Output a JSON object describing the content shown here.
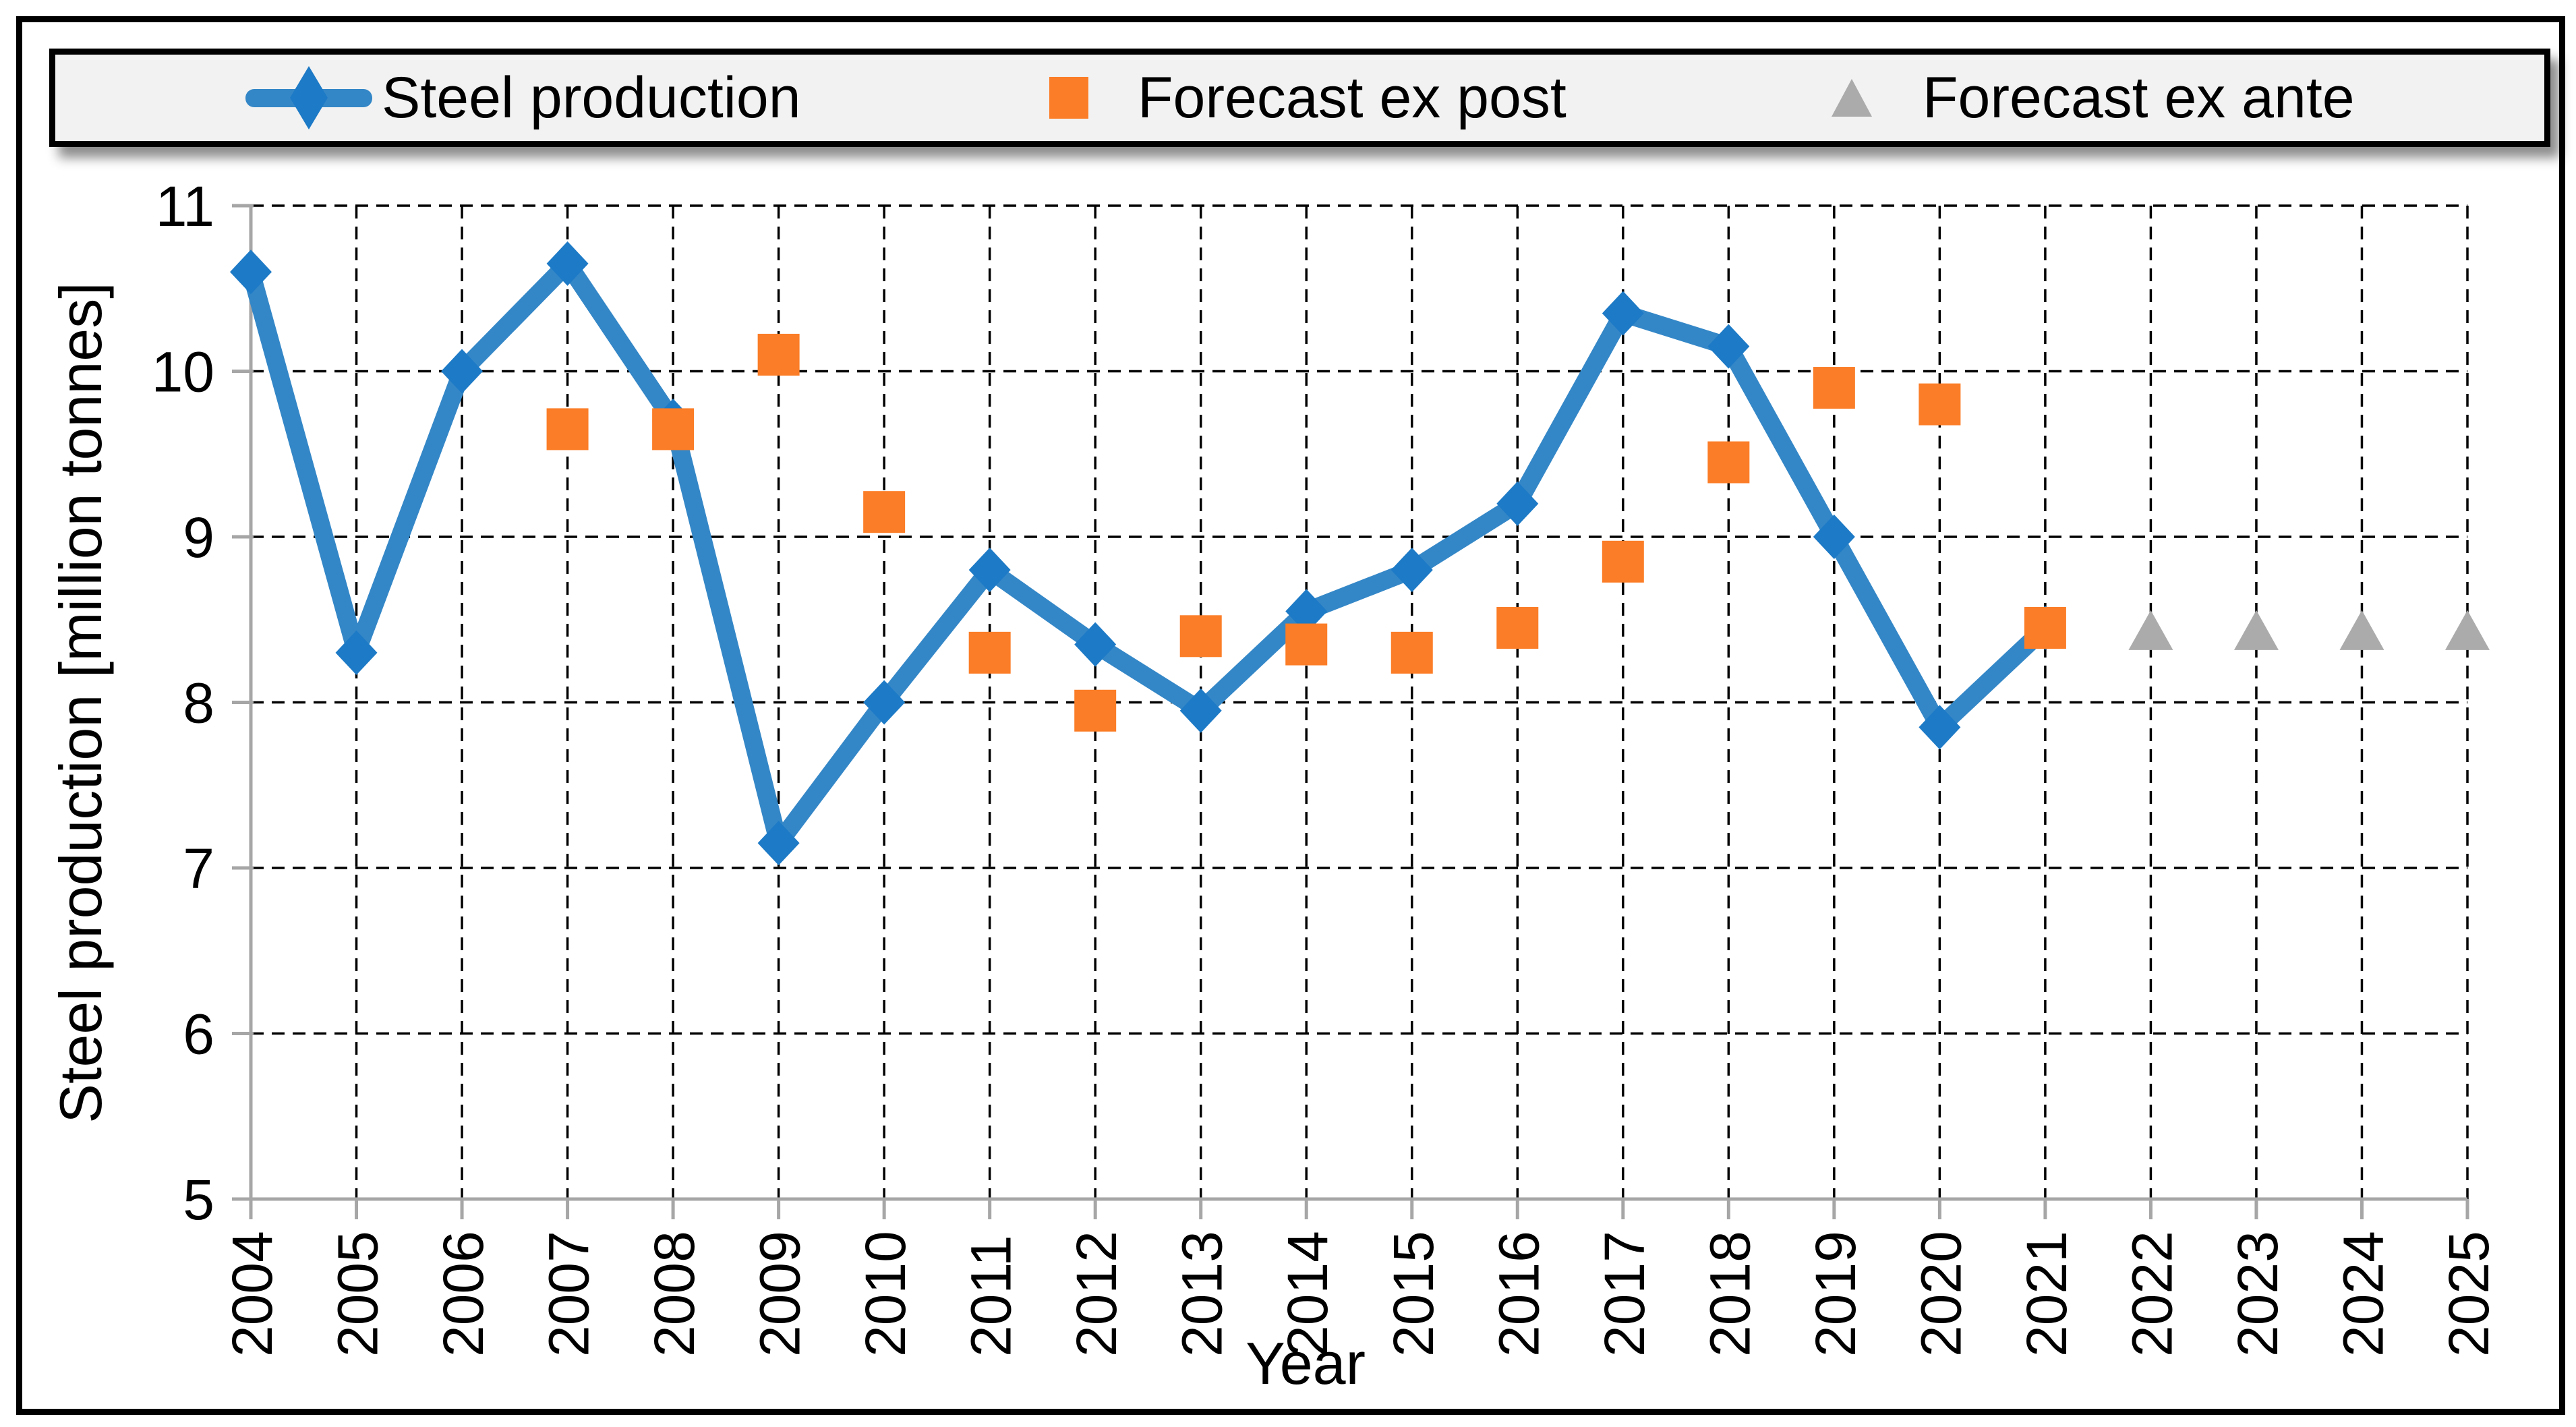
{
  "legend": {
    "items": [
      {
        "label": "Steel production",
        "marker": "line-diamond",
        "line_color": "#3487C7",
        "marker_color": "#1D7AC6"
      },
      {
        "label": "Forecast ex post",
        "marker": "square",
        "marker_color": "#FB7D27"
      },
      {
        "label": "Forecast ex ante",
        "marker": "triangle",
        "marker_color": "#ABABAB"
      }
    ]
  },
  "chart_data": {
    "type": "line",
    "title": "",
    "xlabel": "Year",
    "ylabel": "Steel production [million tonnes]",
    "x_categories": [
      2004,
      2005,
      2006,
      2007,
      2008,
      2009,
      2010,
      2011,
      2012,
      2013,
      2014,
      2015,
      2016,
      2017,
      2018,
      2019,
      2020,
      2021,
      2022,
      2023,
      2024,
      2025
    ],
    "yticks": [
      5,
      6,
      7,
      8,
      9,
      10,
      11
    ],
    "ylim": [
      5,
      11
    ],
    "grid": "dashed black, both axes",
    "legend_position": "top",
    "axis_color": "#A6A6A6",
    "series": [
      {
        "name": "Steel production",
        "render": "line-with-diamond-markers",
        "line_color": "#3487C7",
        "marker_color": "#1D7AC6",
        "x": [
          2004,
          2005,
          2006,
          2007,
          2008,
          2009,
          2010,
          2011,
          2012,
          2013,
          2014,
          2015,
          2016,
          2017,
          2018,
          2019,
          2020,
          2021
        ],
        "y": [
          10.6,
          8.3,
          10.0,
          10.65,
          9.7,
          7.15,
          8.0,
          8.8,
          8.35,
          7.95,
          8.55,
          8.8,
          9.2,
          10.35,
          10.15,
          9.0,
          7.85,
          8.45
        ]
      },
      {
        "name": "Forecast ex post",
        "render": "scatter-square-markers",
        "marker_color": "#FB7D27",
        "x": [
          2007,
          2008,
          2009,
          2010,
          2011,
          2012,
          2013,
          2014,
          2015,
          2016,
          2017,
          2018,
          2019,
          2020,
          2021
        ],
        "y": [
          9.65,
          9.65,
          10.1,
          9.15,
          8.3,
          7.95,
          8.4,
          8.35,
          8.3,
          8.45,
          8.85,
          9.45,
          9.9,
          9.8,
          8.45
        ]
      },
      {
        "name": "Forecast ex ante",
        "render": "scatter-triangle-markers",
        "marker_color": "#ABABAB",
        "x": [
          2022,
          2023,
          2024,
          2025
        ],
        "y": [
          8.43,
          8.43,
          8.43,
          8.43
        ]
      }
    ]
  }
}
